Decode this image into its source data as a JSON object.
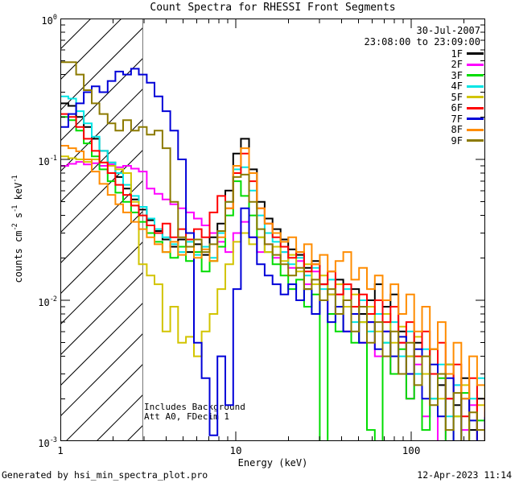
{
  "title": "Count Spectra for RHESSI Front Segments",
  "header": {
    "date": "30-Jul-2007",
    "time_range": "23:08:00 to 23:09:00"
  },
  "notes": {
    "line1": "Includes Background",
    "line2": "Att A0, FDecim 1"
  },
  "footer": {
    "left": "Generated by hsi_min_spectra_plot.pro",
    "right": "12-Apr-2023 11:14"
  },
  "legend": {
    "entries": [
      {
        "label": "1F",
        "color": "#000000"
      },
      {
        "label": "2F",
        "color": "#FF00FF"
      },
      {
        "label": "3F",
        "color": "#00DC00"
      },
      {
        "label": "4F",
        "color": "#00E5E5"
      },
      {
        "label": "5F",
        "color": "#D2C400"
      },
      {
        "label": "6F",
        "color": "#FF0000"
      },
      {
        "label": "7F",
        "color": "#0000D8"
      },
      {
        "label": "8F",
        "color": "#FF8C00"
      },
      {
        "label": "9F",
        "color": "#8C7A00"
      }
    ]
  },
  "axes": {
    "x": {
      "label": "Energy (keV)",
      "ticks": [
        {
          "v": 1,
          "label": "1"
        },
        {
          "v": 10,
          "label": "10"
        },
        {
          "v": 100,
          "label": "100"
        }
      ],
      "minor": [
        2,
        3,
        4,
        5,
        6,
        7,
        8,
        9,
        20,
        30,
        40,
        50,
        60,
        70,
        80,
        90,
        200
      ]
    },
    "y": {
      "label_parts": [
        {
          "t": "counts cm"
        },
        {
          "t": "-2",
          "sup": true
        },
        {
          "t": " s"
        },
        {
          "t": "-1",
          "sup": true
        },
        {
          "t": " keV"
        },
        {
          "t": "-1",
          "sup": true
        }
      ],
      "ticks": [
        {
          "v": 1,
          "base": "10",
          "exp": "0"
        },
        {
          "v": 0.1,
          "base": "10",
          "exp": "-1"
        },
        {
          "v": 0.01,
          "base": "10",
          "exp": "-2"
        },
        {
          "v": 0.001,
          "base": "10",
          "exp": "-3"
        }
      ],
      "minor": [
        0.9,
        0.8,
        0.7,
        0.6,
        0.5,
        0.4,
        0.3,
        0.2,
        0.09,
        0.08,
        0.07,
        0.06,
        0.05,
        0.04,
        0.03,
        0.02,
        0.009,
        0.008,
        0.007,
        0.006,
        0.005,
        0.004,
        0.003,
        0.002
      ]
    }
  },
  "chart_data": {
    "type": "line",
    "mode": "histogram-steps",
    "xscale": "log",
    "yscale": "log",
    "title": "Count Spectra for RHESSI Front Segments",
    "xlabel": "Energy (keV)",
    "ylabel": "counts cm-2 s-1 keV-1",
    "xlim": [
      1,
      264
    ],
    "ylim": [
      0.001,
      1
    ],
    "grid": false,
    "legend_position": "top-right",
    "hatched_low_energy_region_keV": [
      1,
      2.95
    ],
    "hatch_line_spacing_px": 38,
    "bin_edges_keV": [
      1.0,
      1.11,
      1.23,
      1.36,
      1.51,
      1.67,
      1.86,
      2.06,
      2.28,
      2.53,
      2.8,
      3.11,
      3.44,
      3.82,
      4.23,
      4.69,
      5.2,
      5.77,
      6.39,
      7.09,
      7.86,
      8.71,
      9.66,
      10.7,
      11.9,
      13.2,
      14.6,
      16.2,
      18.0,
      19.9,
      22.1,
      24.5,
      27.1,
      30.1,
      33.4,
      37.0,
      41.0,
      45.5,
      50.4,
      55.9,
      62.0,
      68.7,
      76.2,
      84.5,
      93.7,
      103.9,
      115.2,
      127.7,
      141.6,
      157.0,
      174.1,
      193.0,
      214.0,
      237.3,
      263.1
    ],
    "series": [
      {
        "name": "1F",
        "color": "#000000",
        "values": [
          0.25,
          0.24,
          0.2,
          0.17,
          0.14,
          0.115,
          0.095,
          0.075,
          0.062,
          0.052,
          0.044,
          0.037,
          0.031,
          0.027,
          0.024,
          0.027,
          0.022,
          0.025,
          0.021,
          0.028,
          0.035,
          0.06,
          0.11,
          0.14,
          0.085,
          0.05,
          0.038,
          0.032,
          0.027,
          0.023,
          0.021,
          0.017,
          0.019,
          0.013,
          0.011,
          0.014,
          0.009,
          0.012,
          0.008,
          0.01,
          0.013,
          0.009,
          0.011,
          0.006,
          0.004,
          0.005,
          0.003,
          0.0045,
          0.0025,
          0.0035,
          0.0018,
          0.0028,
          0.0012,
          0.002,
          0.0014
        ]
      },
      {
        "name": "2F",
        "color": "#FF00FF",
        "values": [
          0.09,
          0.093,
          0.096,
          0.092,
          0.094,
          0.09,
          0.092,
          0.088,
          0.09,
          0.086,
          0.082,
          0.062,
          0.057,
          0.052,
          0.048,
          0.045,
          0.042,
          0.038,
          0.034,
          0.03,
          0.026,
          0.022,
          0.03,
          0.036,
          0.028,
          0.022,
          0.025,
          0.02,
          0.022,
          0.017,
          0.019,
          0.013,
          0.016,
          0.01,
          0.008,
          0.011,
          0.006,
          0.009,
          0.005,
          0.007,
          0.004,
          0.006,
          0.003,
          0.005,
          0.002,
          0.0035,
          0.0015,
          0.003,
          0.0009,
          0.002,
          0.0025,
          0.0012,
          0.0018,
          0.0008,
          0.0015
        ]
      },
      {
        "name": "3F",
        "color": "#00DC00",
        "values": [
          0.2,
          0.19,
          0.16,
          0.13,
          0.105,
          0.085,
          0.07,
          0.058,
          0.05,
          0.042,
          0.036,
          0.03,
          0.026,
          0.022,
          0.02,
          0.024,
          0.019,
          0.022,
          0.016,
          0.019,
          0.024,
          0.04,
          0.07,
          0.055,
          0.04,
          0.028,
          0.022,
          0.018,
          0.015,
          0.012,
          0.014,
          0.009,
          0.011,
          0.0008,
          0.008,
          0.006,
          0.009,
          0.005,
          0.007,
          0.0012,
          0.0009,
          0.005,
          0.003,
          0.0045,
          0.002,
          0.003,
          0.0012,
          0.002,
          0.0028,
          0.0009,
          0.0015,
          0.0022,
          0.0008,
          0.0014,
          0.001
        ]
      },
      {
        "name": "4F",
        "color": "#00E5E5",
        "values": [
          0.28,
          0.27,
          0.22,
          0.18,
          0.145,
          0.115,
          0.095,
          0.08,
          0.066,
          0.055,
          0.046,
          0.038,
          0.032,
          0.028,
          0.025,
          0.022,
          0.026,
          0.021,
          0.024,
          0.02,
          0.03,
          0.05,
          0.085,
          0.088,
          0.06,
          0.04,
          0.03,
          0.026,
          0.022,
          0.018,
          0.02,
          0.015,
          0.017,
          0.012,
          0.014,
          0.009,
          0.012,
          0.007,
          0.01,
          0.006,
          0.008,
          0.005,
          0.007,
          0.004,
          0.006,
          0.003,
          0.0045,
          0.002,
          0.0035,
          0.0015,
          0.0025,
          0.001,
          0.002,
          0.0028,
          0.0012
        ]
      },
      {
        "name": "5F",
        "color": "#D2C400",
        "values": [
          0.105,
          0.102,
          0.1,
          0.096,
          0.1,
          0.095,
          0.09,
          0.085,
          0.08,
          0.05,
          0.018,
          0.015,
          0.013,
          0.006,
          0.009,
          0.005,
          0.0055,
          0.004,
          0.006,
          0.008,
          0.012,
          0.018,
          0.026,
          0.03,
          0.025,
          0.028,
          0.022,
          0.024,
          0.019,
          0.021,
          0.016,
          0.018,
          0.013,
          0.015,
          0.011,
          0.013,
          0.009,
          0.011,
          0.007,
          0.009,
          0.006,
          0.008,
          0.005,
          0.0065,
          0.004,
          0.0055,
          0.003,
          0.0045,
          0.002,
          0.0035,
          0.0015,
          0.0025,
          0.0009,
          0.0018,
          0.0012
        ]
      },
      {
        "name": "6F",
        "color": "#FF0000",
        "values": [
          0.21,
          0.2,
          0.17,
          0.14,
          0.115,
          0.095,
          0.08,
          0.066,
          0.056,
          0.047,
          0.04,
          0.034,
          0.03,
          0.035,
          0.028,
          0.032,
          0.027,
          0.032,
          0.028,
          0.042,
          0.055,
          0.045,
          0.08,
          0.11,
          0.07,
          0.045,
          0.035,
          0.028,
          0.024,
          0.02,
          0.022,
          0.016,
          0.018,
          0.013,
          0.016,
          0.011,
          0.013,
          0.009,
          0.011,
          0.008,
          0.01,
          0.007,
          0.009,
          0.005,
          0.007,
          0.004,
          0.006,
          0.003,
          0.005,
          0.002,
          0.0035,
          0.0015,
          0.0028,
          0.001,
          0.002
        ]
      },
      {
        "name": "7F",
        "color": "#0000D8",
        "values": [
          0.17,
          0.21,
          0.25,
          0.3,
          0.33,
          0.3,
          0.36,
          0.42,
          0.4,
          0.44,
          0.4,
          0.35,
          0.28,
          0.22,
          0.16,
          0.1,
          0.03,
          0.005,
          0.0028,
          0.0011,
          0.004,
          0.0018,
          0.012,
          0.045,
          0.028,
          0.018,
          0.015,
          0.013,
          0.011,
          0.013,
          0.01,
          0.012,
          0.008,
          0.01,
          0.007,
          0.009,
          0.006,
          0.008,
          0.005,
          0.007,
          0.0045,
          0.006,
          0.004,
          0.0055,
          0.003,
          0.0045,
          0.002,
          0.0035,
          0.0015,
          0.0028,
          0.001,
          0.002,
          0.0014,
          0.0009,
          0.0016
        ]
      },
      {
        "name": "8F",
        "color": "#FF8C00",
        "values": [
          0.125,
          0.12,
          0.114,
          0.1,
          0.082,
          0.067,
          0.056,
          0.048,
          0.042,
          0.036,
          0.032,
          0.028,
          0.025,
          0.022,
          0.026,
          0.021,
          0.024,
          0.02,
          0.023,
          0.019,
          0.028,
          0.045,
          0.09,
          0.12,
          0.08,
          0.045,
          0.035,
          0.03,
          0.026,
          0.028,
          0.022,
          0.025,
          0.018,
          0.021,
          0.016,
          0.019,
          0.022,
          0.014,
          0.017,
          0.012,
          0.015,
          0.01,
          0.013,
          0.008,
          0.011,
          0.006,
          0.009,
          0.0045,
          0.007,
          0.003,
          0.005,
          0.002,
          0.004,
          0.0025,
          0.0015
        ]
      },
      {
        "name": "9F",
        "color": "#8C7A00",
        "values": [
          0.49,
          0.49,
          0.4,
          0.31,
          0.25,
          0.21,
          0.18,
          0.16,
          0.19,
          0.16,
          0.17,
          0.15,
          0.16,
          0.12,
          0.05,
          0.028,
          0.024,
          0.027,
          0.022,
          0.025,
          0.031,
          0.05,
          0.075,
          0.078,
          0.05,
          0.032,
          0.025,
          0.021,
          0.018,
          0.015,
          0.017,
          0.012,
          0.014,
          0.01,
          0.012,
          0.008,
          0.01,
          0.006,
          0.009,
          0.005,
          0.007,
          0.004,
          0.006,
          0.003,
          0.005,
          0.0025,
          0.004,
          0.0018,
          0.003,
          0.0012,
          0.0022,
          0.0009,
          0.0016,
          0.0012,
          0.0008
        ]
      }
    ]
  }
}
